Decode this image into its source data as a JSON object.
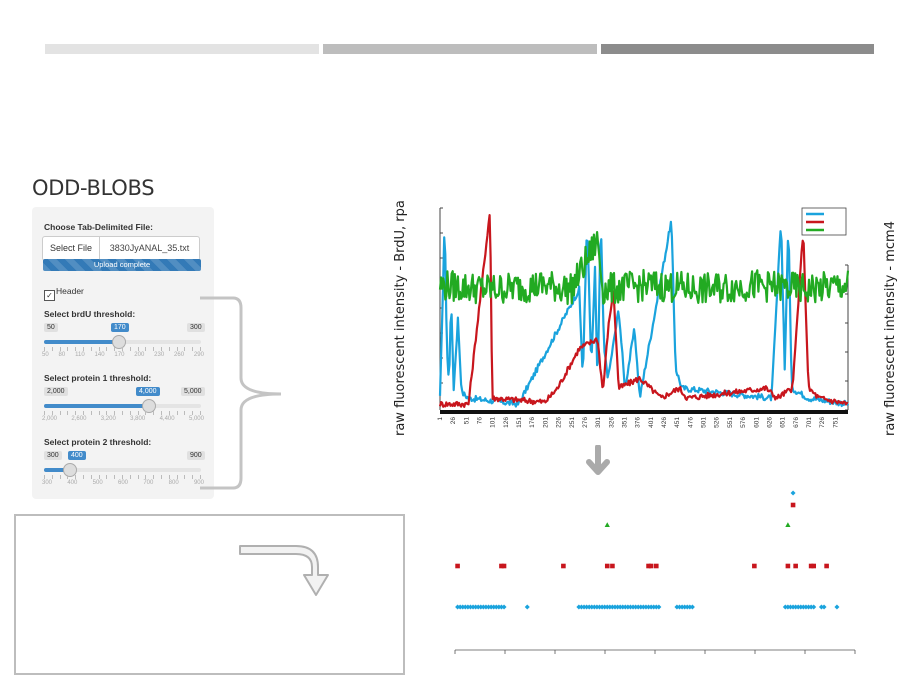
{
  "app": {
    "title": "ODD-BLOBS"
  },
  "file_input": {
    "label": "Choose Tab-Delimited File:",
    "button_label": "Select File",
    "file_name": "3830JyANAL_35.txt",
    "progress_text": "Upload complete",
    "progress": 1.0
  },
  "header_checkbox": {
    "label": "Header",
    "checked": true,
    "check_mark": "✓"
  },
  "sliders": [
    {
      "label": "Select brdU threshold:",
      "min_label": "50",
      "max_label": "300",
      "value_label": "170",
      "min": 50,
      "max": 300,
      "value": 170,
      "tick_labels": [
        "50",
        "80",
        "110",
        "140",
        "170",
        "200",
        "230",
        "260",
        "290"
      ]
    },
    {
      "label": "Select protein 1 threshold:",
      "min_label": "2,000",
      "max_label": "5,000",
      "value_label": "4,000",
      "min": 2000,
      "max": 5000,
      "value": 4000,
      "tick_labels": [
        "2,000",
        "2,600",
        "3,200",
        "3,800",
        "4,400",
        "5,000"
      ]
    },
    {
      "label": "Select protein 2 threshold:",
      "min_label": "300",
      "max_label": "900",
      "value_label": "400",
      "min": 300,
      "max": 900,
      "value": 400,
      "tick_labels": [
        "300",
        "400",
        "500",
        "600",
        "700",
        "800",
        "900"
      ]
    }
  ],
  "left_axis_title": "raw fluorescent intensity - BrdU, rpa",
  "right_axis_title": "raw fluorescent intensity - mcm4",
  "colors": {
    "brdu": "#1aa3dd",
    "rpa": "#c8161d",
    "mcm4": "#22aa22",
    "accent": "#428bca",
    "bracket": "#c4c4c4",
    "topbar1": "#e3e3e3",
    "topbar2": "#bdbdbd",
    "topbar3": "#8c8c8c"
  },
  "icons": {
    "down_arrow": "down-arrow-icon",
    "curved_arrow": "curved-arrow-icon"
  },
  "chart_data": [
    {
      "type": "line",
      "x_tick_labels": [
        "1",
        "26",
        "51",
        "76",
        "101",
        "126",
        "151",
        "176",
        "201",
        "226",
        "251",
        "276",
        "301",
        "326",
        "351",
        "376",
        "401",
        "426",
        "451",
        "476",
        "501",
        "526",
        "551",
        "576",
        "601",
        "626",
        "651",
        "676",
        "701",
        "726",
        "751"
      ],
      "x_range": [
        1,
        775
      ],
      "series": [
        {
          "color": "#1aa3dd",
          "description_points": [
            [
              1,
              0.05
            ],
            [
              10,
              0.95
            ],
            [
              14,
              0.3
            ],
            [
              18,
              0.12
            ],
            [
              22,
              0.55
            ],
            [
              27,
              0.1
            ],
            [
              35,
              0.45
            ],
            [
              42,
              0.08
            ],
            [
              55,
              0.05
            ],
            [
              150,
              0.02
            ],
            [
              265,
              0.6
            ],
            [
              272,
              0.15
            ],
            [
              280,
              0.95
            ],
            [
              288,
              0.2
            ],
            [
              295,
              0.7
            ],
            [
              300,
              0.1
            ],
            [
              306,
              0.95
            ],
            [
              312,
              0.3
            ],
            [
              320,
              0.15
            ],
            [
              340,
              0.5
            ],
            [
              352,
              0.1
            ],
            [
              370,
              0.4
            ],
            [
              380,
              0.05
            ],
            [
              440,
              0.95
            ],
            [
              448,
              0.2
            ],
            [
              460,
              0.1
            ],
            [
              630,
              0.05
            ],
            [
              648,
              0.95
            ],
            [
              655,
              0.2
            ],
            [
              662,
              0.95
            ],
            [
              668,
              0.1
            ],
            [
              700,
              0.05
            ],
            [
              775,
              0.02
            ]
          ]
        },
        {
          "color": "#c8161d",
          "description_points": [
            [
              1,
              0.02
            ],
            [
              55,
              0.02
            ],
            [
              96,
              1.0
            ],
            [
              100,
              0.05
            ],
            [
              200,
              0.03
            ],
            [
              224,
              0.1
            ],
            [
              265,
              0.3
            ],
            [
              300,
              0.35
            ],
            [
              310,
              0.08
            ],
            [
              320,
              0.4
            ],
            [
              330,
              0.6
            ],
            [
              340,
              0.1
            ],
            [
              380,
              0.15
            ],
            [
              420,
              0.05
            ],
            [
              455,
              0.1
            ],
            [
              470,
              0.05
            ],
            [
              620,
              0.1
            ],
            [
              640,
              0.05
            ],
            [
              670,
              0.1
            ],
            [
              690,
              0.9
            ],
            [
              700,
              0.1
            ],
            [
              720,
              0.05
            ],
            [
              775,
              0.02
            ]
          ]
        },
        {
          "color": "#22aa22",
          "description_points": [
            [
              1,
              0.62
            ],
            [
              100,
              0.6
            ],
            [
              200,
              0.62
            ],
            [
              250,
              0.6
            ],
            [
              300,
              0.85
            ],
            [
              310,
              0.6
            ],
            [
              400,
              0.62
            ],
            [
              500,
              0.6
            ],
            [
              600,
              0.62
            ],
            [
              700,
              0.6
            ],
            [
              775,
              0.62
            ]
          ]
        }
      ],
      "legend": [
        "",
        "",
        ""
      ],
      "legend_position": "top-right"
    },
    {
      "type": "scatter",
      "x_range": [
        0,
        775
      ],
      "series": [
        {
          "color": "#1aa3dd",
          "marker": "diamond",
          "y": 1,
          "x": [
            5,
            10,
            15,
            20,
            25,
            30,
            35,
            40,
            45,
            50,
            55,
            60,
            65,
            70,
            75,
            80,
            85,
            90,
            95,
            140,
            240,
            245,
            250,
            255,
            260,
            265,
            270,
            275,
            280,
            285,
            290,
            295,
            300,
            305,
            310,
            315,
            320,
            325,
            330,
            335,
            340,
            345,
            350,
            355,
            360,
            365,
            370,
            375,
            380,
            385,
            390,
            395,
            430,
            435,
            440,
            445,
            450,
            455,
            460,
            640,
            645,
            650,
            655,
            660,
            665,
            670,
            675,
            680,
            685,
            690,
            695,
            710,
            715,
            740
          ]
        },
        {
          "color": "#c8161d",
          "marker": "square",
          "y": 2,
          "x": [
            5,
            90,
            95,
            210,
            295,
            305,
            375,
            380,
            390,
            580,
            645,
            660,
            690,
            695,
            720
          ]
        },
        {
          "color": "#22aa22",
          "marker": "triangle",
          "y": 3,
          "x": [
            295,
            645
          ]
        },
        {
          "color": "#c8161d",
          "marker": "square",
          "y": 4,
          "x": [
            655
          ]
        },
        {
          "color": "#1aa3dd",
          "marker": "diamond",
          "y": 5,
          "x": [
            655
          ]
        }
      ]
    }
  ]
}
